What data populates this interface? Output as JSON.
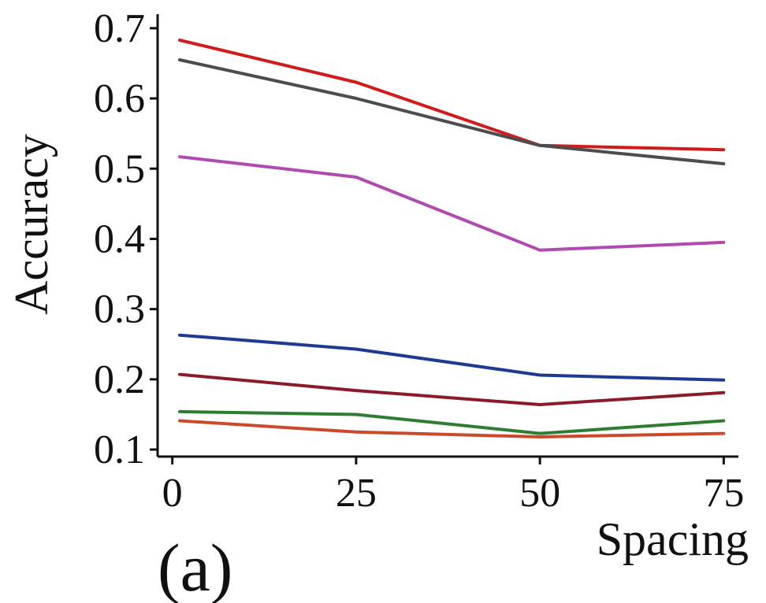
{
  "chart_data": {
    "type": "line",
    "panel_label": "(a)",
    "xlabel": "Spacing",
    "ylabel": "Accuracy",
    "x": [
      1,
      25,
      50,
      75
    ],
    "xticks": [
      0,
      25,
      50,
      75
    ],
    "xtick_labels": [
      "0",
      "25",
      "50",
      "75"
    ],
    "yticks": [
      0.1,
      0.2,
      0.3,
      0.4,
      0.5,
      0.6,
      0.7
    ],
    "ytick_labels": [
      "0.1",
      "0.2",
      "0.3",
      "0.4",
      "0.5",
      "0.6",
      "0.7"
    ],
    "xlim": [
      -2,
      77
    ],
    "ylim": [
      0.09,
      0.72
    ],
    "grid": false,
    "legend": "none",
    "series": [
      {
        "color": "#d01c1c",
        "values": [
          0.683,
          0.623,
          0.533,
          0.527
        ]
      },
      {
        "color": "#4d4d4d",
        "values": [
          0.655,
          0.6,
          0.533,
          0.507
        ]
      },
      {
        "color": "#b04ab0",
        "values": [
          0.517,
          0.488,
          0.384,
          0.395
        ]
      },
      {
        "color": "#1f3a93",
        "values": [
          0.263,
          0.243,
          0.206,
          0.199
        ]
      },
      {
        "color": "#8b1a2a",
        "values": [
          0.207,
          0.184,
          0.164,
          0.181
        ]
      },
      {
        "color": "#2e7d32",
        "values": [
          0.154,
          0.15,
          0.123,
          0.141
        ]
      },
      {
        "color": "#cc4a2a",
        "values": [
          0.141,
          0.125,
          0.118,
          0.123
        ]
      }
    ]
  }
}
